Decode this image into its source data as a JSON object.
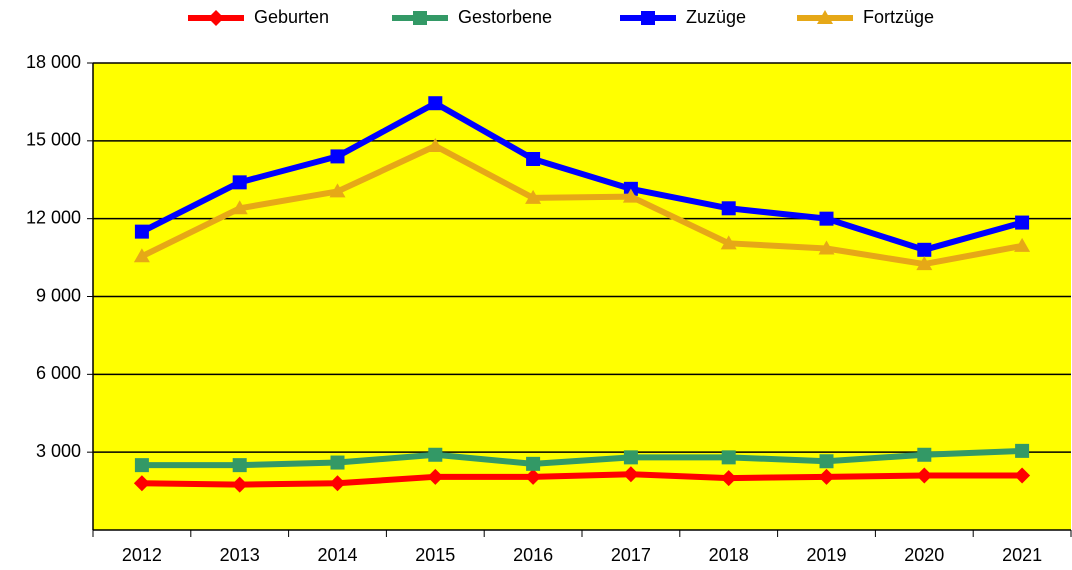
{
  "chart_data": {
    "type": "line",
    "categories": [
      "2012",
      "2013",
      "2014",
      "2015",
      "2016",
      "2017",
      "2018",
      "2019",
      "2020",
      "2021"
    ],
    "series": [
      {
        "name": "Geburten",
        "color": "#ff0000",
        "marker": "diamond",
        "values": [
          1800,
          1750,
          1800,
          2050,
          2050,
          2150,
          2000,
          2050,
          2100,
          2100
        ]
      },
      {
        "name": "Gestorbene",
        "color": "#339966",
        "marker": "square",
        "values": [
          2500,
          2500,
          2600,
          2900,
          2550,
          2800,
          2800,
          2650,
          2900,
          3050
        ]
      },
      {
        "name": "Zuzüge",
        "color": "#0000ff",
        "marker": "square",
        "values": [
          11500,
          13400,
          14400,
          16450,
          14300,
          13150,
          12400,
          12000,
          10800,
          11850
        ]
      },
      {
        "name": "Fortzüge",
        "color": "#e6a817",
        "marker": "triangle",
        "values": [
          10550,
          12400,
          13050,
          14800,
          12800,
          12850,
          11050,
          10850,
          10250,
          10950
        ]
      }
    ],
    "ylim": [
      0,
      18000
    ],
    "yticks": [
      {
        "value": 3000,
        "label": "3 000"
      },
      {
        "value": 6000,
        "label": "6 000"
      },
      {
        "value": 9000,
        "label": "9 000"
      },
      {
        "value": 12000,
        "label": "12 000"
      },
      {
        "value": 15000,
        "label": "15 000"
      },
      {
        "value": 18000,
        "label": "18 000"
      }
    ],
    "grid": true,
    "plot_background": "#ffff00",
    "legend": "top"
  }
}
